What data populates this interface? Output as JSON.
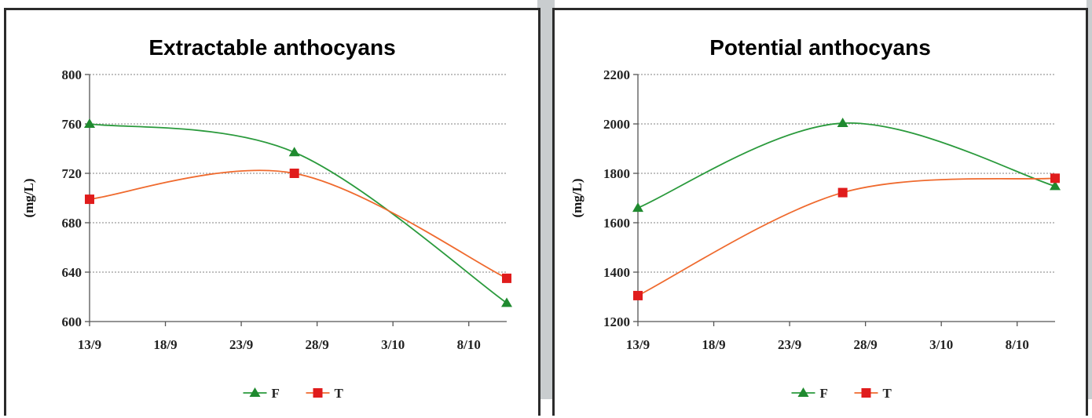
{
  "colors": {
    "F": "#2a9a3c",
    "T": "#ef6a2e",
    "F_marker": "#1f8a2f",
    "T_marker": "#e01c1c"
  },
  "chart_data": [
    {
      "type": "line",
      "title": "Extractable anthocyans",
      "ylabel": "(mg/L)",
      "xlabel": "",
      "ylim": [
        600,
        800
      ],
      "yticks": [
        "600",
        "640",
        "680",
        "720",
        "760",
        "800"
      ],
      "xticks": [
        "13/9",
        "18/9",
        "23/9",
        "28/9",
        "3/10",
        "8/10"
      ],
      "xtick_days": [
        0,
        5,
        10,
        15,
        20,
        25
      ],
      "xlim_days": [
        0,
        27.5
      ],
      "grid": true,
      "legend": "bottom-center",
      "series": [
        {
          "name": "F",
          "marker": "triangle",
          "days": [
            0,
            13.5,
            27.5
          ],
          "values": [
            760,
            737,
            615
          ]
        },
        {
          "name": "T",
          "marker": "square",
          "days": [
            0,
            13.5,
            27.5
          ],
          "values": [
            699,
            720,
            635
          ]
        }
      ]
    },
    {
      "type": "line",
      "title": "Potential anthocyans",
      "ylabel": "(mg/L)",
      "xlabel": "",
      "ylim": [
        1200,
        2200
      ],
      "yticks": [
        "1200",
        "1400",
        "1600",
        "1800",
        "2000",
        "2200"
      ],
      "xticks": [
        "13/9",
        "18/9",
        "23/9",
        "28/9",
        "3/10",
        "8/10"
      ],
      "xtick_days": [
        0,
        5,
        10,
        15,
        20,
        25
      ],
      "xlim_days": [
        0,
        27.5
      ],
      "grid": true,
      "legend": "bottom-center",
      "series": [
        {
          "name": "F",
          "marker": "triangle",
          "days": [
            0,
            13.5,
            27.5
          ],
          "values": [
            1660,
            2003,
            1748
          ]
        },
        {
          "name": "T",
          "marker": "square",
          "days": [
            0,
            13.5,
            27.5
          ],
          "values": [
            1305,
            1722,
            1780
          ]
        }
      ]
    }
  ]
}
